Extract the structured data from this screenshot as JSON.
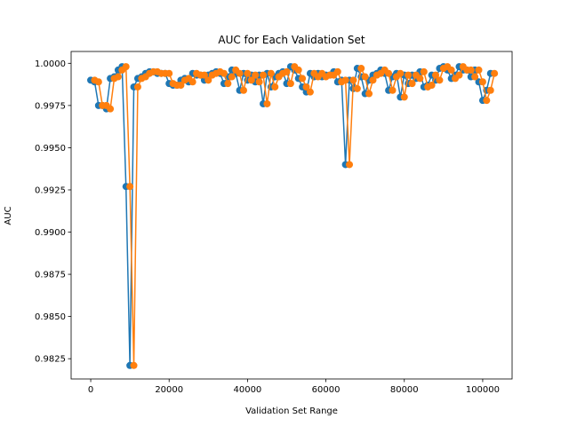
{
  "chart_data": {
    "type": "line",
    "title": "AUC for Each Validation Set",
    "xlabel": "Validation Set Range",
    "ylabel": "AUC",
    "xlim": [
      -5000,
      107500
    ],
    "ylim": [
      0.9813,
      1.0007
    ],
    "x_ticks": [
      0,
      20000,
      40000,
      60000,
      80000,
      100000
    ],
    "x_tick_labels": [
      "0",
      "20000",
      "40000",
      "60000",
      "80000",
      "100000"
    ],
    "y_ticks": [
      0.9825,
      0.985,
      0.9875,
      0.99,
      0.9925,
      0.995,
      0.9975,
      1.0
    ],
    "y_tick_labels": [
      "0.9825",
      "0.9850",
      "0.9875",
      "0.9900",
      "0.9925",
      "0.9950",
      "0.9975",
      "1.0000"
    ],
    "grid": false,
    "legend": "none",
    "series": [
      {
        "color": "#1f77b4",
        "x": [
          0,
          1000,
          2000,
          3000,
          4000,
          5000,
          6000,
          7000,
          8000,
          9000,
          10000,
          11000,
          12000,
          13000,
          14000,
          15000,
          16000,
          17000,
          18000,
          19000,
          20000,
          21000,
          22000,
          23000,
          24000,
          25000,
          26000,
          27000,
          28000,
          29000,
          30000,
          31000,
          32000,
          33000,
          34000,
          35000,
          36000,
          37000,
          38000,
          39000,
          40000,
          41000,
          42000,
          43000,
          44000,
          45000,
          46000,
          47000,
          48000,
          49000,
          50000,
          51000,
          52000,
          53000,
          54000,
          55000,
          56000,
          57000,
          58000,
          59000,
          60000,
          61000,
          62000,
          63000,
          64000,
          65000,
          66000,
          67000,
          68000,
          69000,
          70000,
          71000,
          72000,
          73000,
          74000,
          75000,
          76000,
          77000,
          78000,
          79000,
          80000,
          81000,
          82000,
          83000,
          84000,
          85000,
          86000,
          87000,
          88000,
          89000,
          90000,
          91000,
          92000,
          93000,
          94000,
          95000,
          96000,
          97000,
          98000,
          99000,
          100000,
          101000,
          102000
        ],
        "y": [
          0.999,
          0.9989,
          0.9975,
          0.9975,
          0.9973,
          0.9991,
          0.9992,
          0.9996,
          0.9998,
          0.9927,
          0.9821,
          0.9986,
          0.9991,
          0.9992,
          0.9994,
          0.9995,
          0.9995,
          0.9994,
          0.9994,
          0.9994,
          0.9988,
          0.9987,
          0.9987,
          0.999,
          0.9991,
          0.9989,
          0.9994,
          0.9993,
          0.9993,
          0.999,
          0.9993,
          0.9994,
          0.9995,
          0.9994,
          0.9988,
          0.9992,
          0.9996,
          0.9994,
          0.9984,
          0.9994,
          0.999,
          0.9993,
          0.9989,
          0.9993,
          0.9976,
          0.9994,
          0.9986,
          0.9992,
          0.9994,
          0.9995,
          0.9988,
          0.9998,
          0.9996,
          0.9991,
          0.9986,
          0.9983,
          0.9994,
          0.9992,
          0.9994,
          0.9992,
          0.9993,
          0.9993,
          0.9995,
          0.9989,
          0.999,
          0.994,
          0.999,
          0.9985,
          0.9997,
          0.9992,
          0.9982,
          0.999,
          0.9993,
          0.9994,
          0.9996,
          0.9994,
          0.9984,
          0.9992,
          0.9994,
          0.998,
          0.9993,
          0.9988,
          0.9993,
          0.9991,
          0.9995,
          0.9986,
          0.9987,
          0.9993,
          0.999,
          0.9997,
          0.9998,
          0.9996,
          0.9991,
          0.9993,
          0.9998,
          0.9996,
          0.9996,
          0.9992,
          0.9996,
          0.9989,
          0.9978,
          0.9984,
          0.9994
        ]
      },
      {
        "color": "#ff7f0e",
        "x": [
          1000,
          2000,
          3000,
          4000,
          5000,
          6000,
          7000,
          8000,
          9000,
          10000,
          11000,
          12000,
          13000,
          14000,
          15000,
          16000,
          17000,
          18000,
          19000,
          20000,
          21000,
          22000,
          23000,
          24000,
          25000,
          26000,
          27000,
          28000,
          29000,
          30000,
          31000,
          32000,
          33000,
          34000,
          35000,
          36000,
          37000,
          38000,
          39000,
          40000,
          41000,
          42000,
          43000,
          44000,
          45000,
          46000,
          47000,
          48000,
          49000,
          50000,
          51000,
          52000,
          53000,
          54000,
          55000,
          56000,
          57000,
          58000,
          59000,
          60000,
          61000,
          62000,
          63000,
          64000,
          65000,
          66000,
          67000,
          68000,
          69000,
          70000,
          71000,
          72000,
          73000,
          74000,
          75000,
          76000,
          77000,
          78000,
          79000,
          80000,
          81000,
          82000,
          83000,
          84000,
          85000,
          86000,
          87000,
          88000,
          89000,
          90000,
          91000,
          92000,
          93000,
          94000,
          95000,
          96000,
          97000,
          98000,
          99000,
          100000,
          101000,
          102000,
          103000
        ],
        "y": [
          0.999,
          0.9989,
          0.9975,
          0.9975,
          0.9973,
          0.9991,
          0.9992,
          0.9996,
          0.9998,
          0.9927,
          0.9821,
          0.9986,
          0.9991,
          0.9992,
          0.9994,
          0.9995,
          0.9995,
          0.9994,
          0.9994,
          0.9994,
          0.9988,
          0.9987,
          0.9987,
          0.999,
          0.9991,
          0.9989,
          0.9994,
          0.9993,
          0.9993,
          0.999,
          0.9993,
          0.9994,
          0.9995,
          0.9994,
          0.9988,
          0.9992,
          0.9996,
          0.9994,
          0.9984,
          0.9994,
          0.999,
          0.9993,
          0.9989,
          0.9993,
          0.9976,
          0.9994,
          0.9986,
          0.9992,
          0.9994,
          0.9995,
          0.9988,
          0.9998,
          0.9996,
          0.9991,
          0.9986,
          0.9983,
          0.9994,
          0.9992,
          0.9994,
          0.9992,
          0.9993,
          0.9993,
          0.9995,
          0.9989,
          0.999,
          0.994,
          0.999,
          0.9985,
          0.9997,
          0.9992,
          0.9982,
          0.999,
          0.9993,
          0.9994,
          0.9996,
          0.9994,
          0.9984,
          0.9992,
          0.9994,
          0.998,
          0.9993,
          0.9988,
          0.9993,
          0.9991,
          0.9995,
          0.9986,
          0.9987,
          0.9993,
          0.999,
          0.9997,
          0.9998,
          0.9996,
          0.9991,
          0.9993,
          0.9998,
          0.9996,
          0.9996,
          0.9992,
          0.9996,
          0.9989,
          0.9978,
          0.9984,
          0.9994
        ]
      }
    ]
  }
}
